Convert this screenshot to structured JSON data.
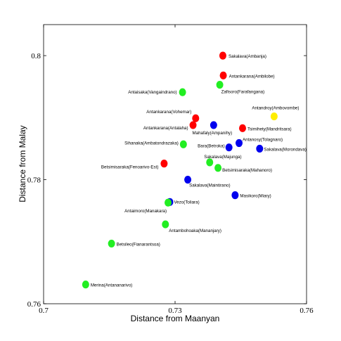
{
  "chart_data": {
    "type": "scatter",
    "xlabel": "Distance from Maanyan",
    "ylabel": "Distance from Malay",
    "xlim": [
      0.7,
      0.76
    ],
    "ylim": [
      0.76,
      0.805
    ],
    "x_ticks": [
      "0.7",
      "0.73",
      "0.76"
    ],
    "y_ticks": [
      "0.76",
      "0.78",
      "0.8"
    ],
    "grid": false,
    "colors": {
      "red": "#ff0000",
      "green": "#22ee22",
      "blue": "#0000ee",
      "yellow": "#ffee00"
    },
    "points": [
      {
        "label": "Sakalava(Ambanja)",
        "x": 0.7409,
        "y": 0.8,
        "color": "red"
      },
      {
        "label": "Antankarana(Ambilobe)",
        "x": 0.741,
        "y": 0.7968,
        "color": "red"
      },
      {
        "label": "Zafisoro(Farafangana)",
        "x": 0.7402,
        "y": 0.7953,
        "color": "green"
      },
      {
        "label": "Antaisaka(Vangaindrano)",
        "x": 0.7317,
        "y": 0.7941,
        "color": "green"
      },
      {
        "label": "Antandroy(Ambovombe)",
        "x": 0.7526,
        "y": 0.7902,
        "color": "yellow"
      },
      {
        "label": "Antankarana(Vohemar)",
        "x": 0.7347,
        "y": 0.7899,
        "color": "red"
      },
      {
        "label": "Mahafaly(Ampanihy)",
        "x": 0.7388,
        "y": 0.7888,
        "color": "blue"
      },
      {
        "label": "Antankarana(Antalaha)",
        "x": 0.7341,
        "y": 0.7888,
        "color": "red"
      },
      {
        "label": "Tsimihety(Mandritsara)",
        "x": 0.7454,
        "y": 0.7883,
        "color": "red"
      },
      {
        "label": "Sihanaka(Ambatondrazaka)",
        "x": 0.7319,
        "y": 0.7857,
        "color": "green"
      },
      {
        "label": "Antanosy(Tolagnaro)",
        "x": 0.7446,
        "y": 0.7859,
        "color": "blue"
      },
      {
        "label": "Bara(Betroka)",
        "x": 0.7423,
        "y": 0.7852,
        "color": "blue"
      },
      {
        "label": "Sakalava(Morondava)",
        "x": 0.7493,
        "y": 0.785,
        "color": "blue"
      },
      {
        "label": "Betsimisaraka(Fenoarivo-Est)",
        "x": 0.7275,
        "y": 0.7826,
        "color": "red"
      },
      {
        "label": "Sakalava(Majunga)",
        "x": 0.7379,
        "y": 0.7828,
        "color": "green"
      },
      {
        "label": "Betsimisaraka(Mahanoro)",
        "x": 0.7398,
        "y": 0.7819,
        "color": "green"
      },
      {
        "label": "Sakalava(Maintirano)",
        "x": 0.7329,
        "y": 0.78,
        "color": "blue"
      },
      {
        "label": "Masikoro(Miary)",
        "x": 0.7437,
        "y": 0.7775,
        "color": "blue"
      },
      {
        "label": "Vezo(Toliara)",
        "x": 0.7288,
        "y": 0.7764,
        "color": "blue"
      },
      {
        "label": "Antaimoro(Manakara)",
        "x": 0.7284,
        "y": 0.7763,
        "color": "green"
      },
      {
        "label": "Antambohoaka(Mananjary)",
        "x": 0.7278,
        "y": 0.7728,
        "color": "green"
      },
      {
        "label": "Betsileo(Fianarantsoa)",
        "x": 0.7155,
        "y": 0.7697,
        "color": "green"
      },
      {
        "label": "Merina(Antananarivo)",
        "x": 0.7096,
        "y": 0.7631,
        "color": "green"
      }
    ]
  }
}
